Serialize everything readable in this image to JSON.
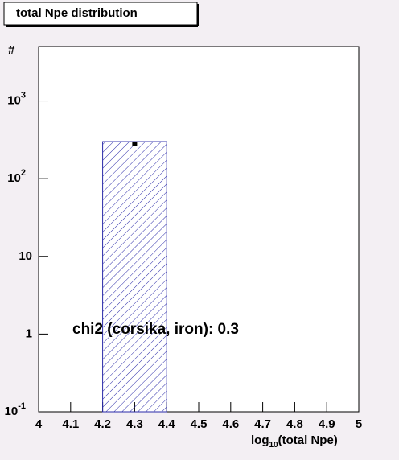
{
  "chart_data": {
    "type": "histogram",
    "title": "total Npe distribution",
    "y_label": "#",
    "x_label": {
      "text": "log",
      "sub": "10",
      "rest": "(total Npe)"
    },
    "annotation": "chi2 (corsika, iron): 0.3",
    "bins": [
      4.2,
      4.4
    ],
    "values": [
      300
    ],
    "color": "#2a2aa8",
    "points": {
      "x": [
        4.3
      ],
      "values": [
        280
      ],
      "errors": [
        18
      ],
      "color": "#000000"
    },
    "log_y": true,
    "xlim": [
      4,
      5
    ],
    "xticks": [
      4,
      4.1,
      4.2,
      4.3,
      4.4,
      4.5,
      4.6,
      4.7,
      4.8,
      4.9,
      5
    ],
    "ylim": [
      0.1,
      5000
    ],
    "yticks": [
      {
        "value": 0.1,
        "label": "10",
        "sup": "-1"
      },
      {
        "value": 1,
        "label": "1"
      },
      {
        "value": 10,
        "label": "10"
      },
      {
        "value": 100,
        "label": "10",
        "sup": "2"
      },
      {
        "value": 1000,
        "label": "10",
        "sup": "3"
      }
    ]
  }
}
